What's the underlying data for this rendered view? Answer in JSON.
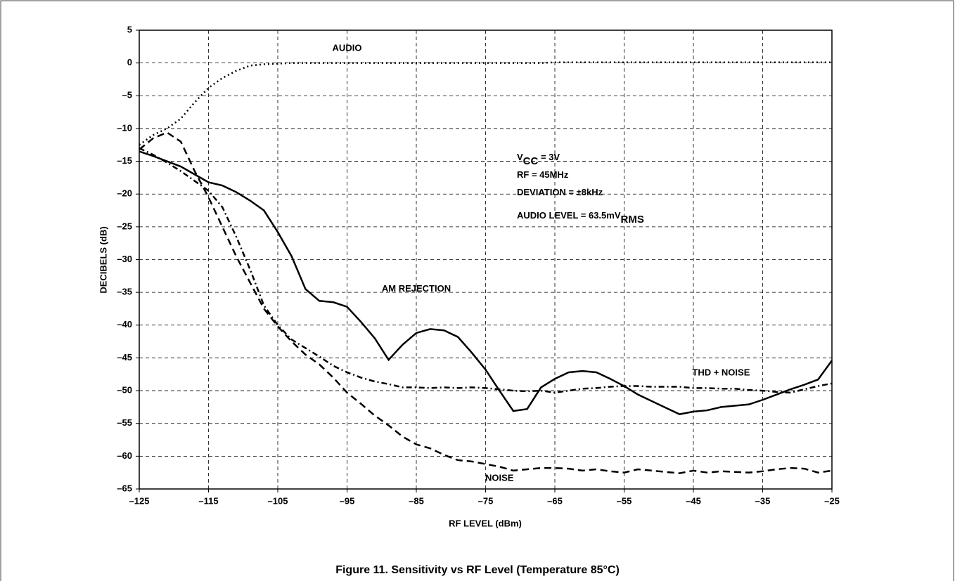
{
  "chart_data": {
    "type": "line",
    "title": "Figure 11.  Sensitivity vs RF Level (Temperature 85°C)",
    "xlabel": "RF LEVEL (dBm)",
    "ylabel": "DECIBELS (dB)",
    "annotations": [
      [
        "V",
        "CC",
        " = 3V"
      ],
      [
        "RF = 45MHz"
      ],
      [
        "DEVIATION = ±8kHz"
      ],
      [
        "AUDIO LEVEL = 63.5mV",
        "RMS"
      ]
    ],
    "x": [
      -125,
      -123,
      -121,
      -119,
      -117,
      -115,
      -113,
      -111,
      -109,
      -107,
      -105,
      -103,
      -101,
      -99,
      -97,
      -95,
      -93,
      -91,
      -89,
      -87,
      -85,
      -83,
      -81,
      -79,
      -77,
      -75,
      -73,
      -71,
      -69,
      -67,
      -65,
      -63,
      -61,
      -59,
      -57,
      -55,
      -53,
      -51,
      -49,
      -47,
      -45,
      -43,
      -41,
      -39,
      -37,
      -35,
      -33,
      -31,
      -29,
      -27,
      -25
    ],
    "series": [
      {
        "name": "AUDIO",
        "color": "#000000",
        "style": "dotted",
        "values": [
          -12.5,
          -11.0,
          -10.0,
          -8.5,
          -6.0,
          -3.8,
          -2.3,
          -1.2,
          -0.4,
          -0.2,
          -0.1,
          0,
          0,
          0,
          0,
          0,
          0,
          0,
          0,
          0,
          0,
          0,
          0,
          0,
          0,
          0,
          0,
          0,
          0,
          0,
          0.1,
          0.1,
          0.1,
          0.1,
          0.1,
          0.1,
          0.1,
          0.1,
          0.1,
          0.1,
          0.1,
          0.1,
          0.1,
          0.1,
          0.1,
          0.1,
          0.1,
          0.1,
          0.1,
          0.1,
          0.1
        ]
      },
      {
        "name": "AM REJECTION",
        "color": "#000000",
        "style": "solid",
        "values": [
          -13.5,
          -14.2,
          -15.0,
          -15.8,
          -17.0,
          -18.2,
          -18.7,
          -19.7,
          -21.0,
          -22.5,
          -25.8,
          -29.5,
          -34.5,
          -36.3,
          -36.5,
          -37.2,
          -39.5,
          -42.0,
          -45.3,
          -43.0,
          -41.2,
          -40.6,
          -40.8,
          -41.8,
          -44.2,
          -46.8,
          -50.0,
          -53.1,
          -52.8,
          -49.5,
          -48.2,
          -47.2,
          -47.0,
          -47.2,
          -48.2,
          -49.3,
          -50.6,
          -51.6,
          -52.6,
          -53.6,
          -53.2,
          -53.0,
          -52.5,
          -52.3,
          -52.1,
          -51.4,
          -50.6,
          -49.8,
          -49.1,
          -48.3,
          -45.4
        ]
      },
      {
        "name": "THD + NOISE",
        "color": "#000000",
        "style": "dashdot",
        "values": [
          -13.0,
          -14.0,
          -15.2,
          -16.5,
          -18.0,
          -19.5,
          -22.0,
          -26.5,
          -31.5,
          -37.0,
          -40.0,
          -42.2,
          -43.5,
          -44.8,
          -46.2,
          -47.2,
          -48.0,
          -48.6,
          -49.0,
          -49.5,
          -49.5,
          -49.6,
          -49.5,
          -49.6,
          -49.5,
          -49.6,
          -49.8,
          -50.0,
          -50.1,
          -50.0,
          -50.3,
          -50.0,
          -49.7,
          -49.6,
          -49.4,
          -49.3,
          -49.3,
          -49.4,
          -49.4,
          -49.4,
          -49.6,
          -49.6,
          -49.7,
          -49.7,
          -49.9,
          -50.0,
          -50.2,
          -50.3,
          -49.8,
          -49.3,
          -48.9
        ]
      },
      {
        "name": "NOISE",
        "color": "#000000",
        "style": "dashed",
        "values": [
          -13.2,
          -11.5,
          -10.6,
          -12.0,
          -16.5,
          -20.5,
          -25.0,
          -29.5,
          -33.5,
          -37.5,
          -40.2,
          -42.5,
          -44.5,
          -46.0,
          -48.0,
          -50.3,
          -52.0,
          -53.8,
          -55.3,
          -57.0,
          -58.2,
          -58.8,
          -59.8,
          -60.6,
          -60.8,
          -61.2,
          -61.6,
          -62.2,
          -62.0,
          -61.8,
          -61.8,
          -61.9,
          -62.2,
          -62.0,
          -62.3,
          -62.5,
          -62.0,
          -62.2,
          -62.4,
          -62.6,
          -62.2,
          -62.5,
          -62.3,
          -62.4,
          -62.5,
          -62.3,
          -62.0,
          -61.8,
          -61.9,
          -62.5,
          -62.2
        ]
      }
    ],
    "xlim": [
      -125,
      -25
    ],
    "xticks": [
      {
        "value": -125,
        "label": "–125"
      },
      {
        "value": -115,
        "label": "–115"
      },
      {
        "value": -105,
        "label": "–105"
      },
      {
        "value": -95,
        "label": "–95"
      },
      {
        "value": -85,
        "label": "–85"
      },
      {
        "value": -75,
        "label": "–75"
      },
      {
        "value": -65,
        "label": "–65"
      },
      {
        "value": -55,
        "label": "–55"
      },
      {
        "value": -45,
        "label": "–45"
      },
      {
        "value": -35,
        "label": "–35"
      },
      {
        "value": -25,
        "label": "–25"
      }
    ],
    "ylim": [
      -65,
      5
    ],
    "yticks": [
      5,
      0,
      {
        "value": -5,
        "label": "–5"
      },
      {
        "value": -10,
        "label": "–10"
      },
      {
        "value": -15,
        "label": "–15"
      },
      {
        "value": -20,
        "label": "–20"
      },
      {
        "value": -25,
        "label": "–25"
      },
      {
        "value": -30,
        "label": "–30"
      },
      {
        "value": -35,
        "label": "–35"
      },
      {
        "value": -40,
        "label": "–40"
      },
      {
        "value": -45,
        "label": "–45"
      },
      {
        "value": -50,
        "label": "–50"
      },
      {
        "value": -55,
        "label": "–55"
      },
      {
        "value": -60,
        "label": "–60"
      },
      {
        "value": -65,
        "label": "–65"
      }
    ],
    "grid": true
  }
}
